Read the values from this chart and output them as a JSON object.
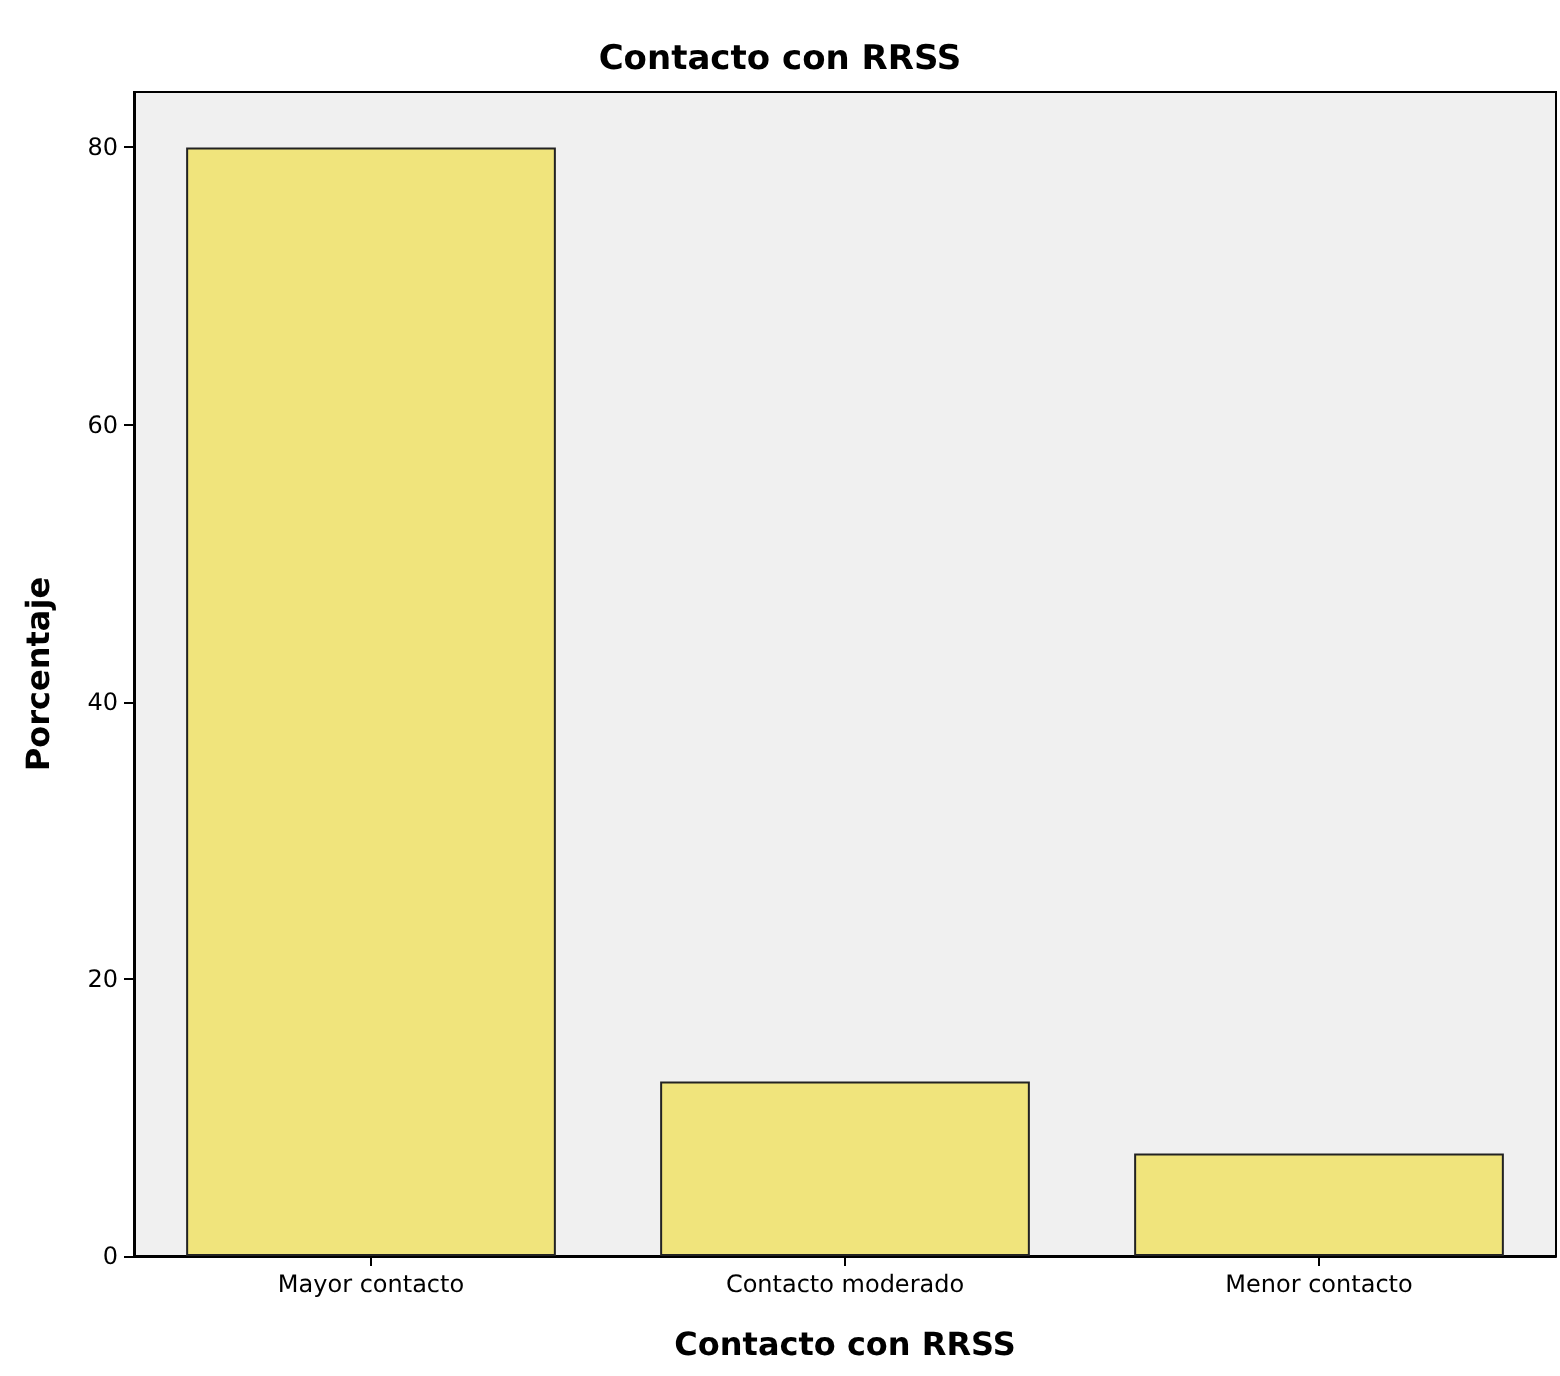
{
  "chart_data": {
    "type": "bar",
    "title": "Contacto con RRSS",
    "xlabel": "Contacto con RRSS",
    "ylabel": "Porcentaje",
    "categories": [
      "Mayor contacto",
      "Contacto moderado",
      "Menor contacto"
    ],
    "values": [
      80,
      12.6,
      7.4
    ],
    "color": "#f0e47c",
    "ylim": [
      0,
      84
    ],
    "yticks": [
      0,
      20,
      40,
      60,
      80
    ],
    "grid": false
  }
}
